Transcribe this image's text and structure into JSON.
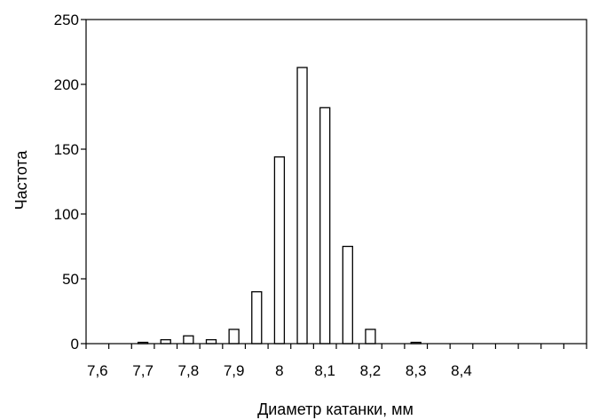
{
  "chart_data": {
    "type": "bar",
    "title": "",
    "xlabel": "Диаметр катанки, мм",
    "ylabel": "Частота",
    "ylim": [
      0,
      250
    ],
    "xlim": [
      7.575,
      8.675
    ],
    "yticks": [
      0,
      50,
      100,
      150,
      200,
      250
    ],
    "ytick_labels": [
      "0",
      "50",
      "100",
      "150",
      "200",
      "250"
    ],
    "xticks": [
      7.6,
      7.7,
      7.8,
      7.9,
      8.0,
      8.1,
      8.2,
      8.3,
      8.4
    ],
    "xtick_labels": [
      "7,6",
      "7,7",
      "7,8",
      "7,9",
      "8",
      "8,1",
      "8,2",
      "8,3",
      "8,4"
    ],
    "grid": false,
    "bar_fill": "#ffffff",
    "bar_stroke": "#000000",
    "bars": [
      {
        "x": 7.6,
        "value": 0
      },
      {
        "x": 7.65,
        "value": 0
      },
      {
        "x": 7.7,
        "value": 1
      },
      {
        "x": 7.75,
        "value": 3
      },
      {
        "x": 7.8,
        "value": 6
      },
      {
        "x": 7.85,
        "value": 3
      },
      {
        "x": 7.9,
        "value": 11
      },
      {
        "x": 7.95,
        "value": 40
      },
      {
        "x": 8.0,
        "value": 144
      },
      {
        "x": 8.05,
        "value": 213
      },
      {
        "x": 8.1,
        "value": 182
      },
      {
        "x": 8.15,
        "value": 75
      },
      {
        "x": 8.2,
        "value": 11
      },
      {
        "x": 8.25,
        "value": 0
      },
      {
        "x": 8.3,
        "value": 1
      },
      {
        "x": 8.35,
        "value": 0
      },
      {
        "x": 8.4,
        "value": 0
      },
      {
        "x": 8.45,
        "value": 0
      },
      {
        "x": 8.5,
        "value": 0
      },
      {
        "x": 8.55,
        "value": 0
      },
      {
        "x": 8.6,
        "value": 0
      },
      {
        "x": 8.65,
        "value": 0
      }
    ]
  }
}
